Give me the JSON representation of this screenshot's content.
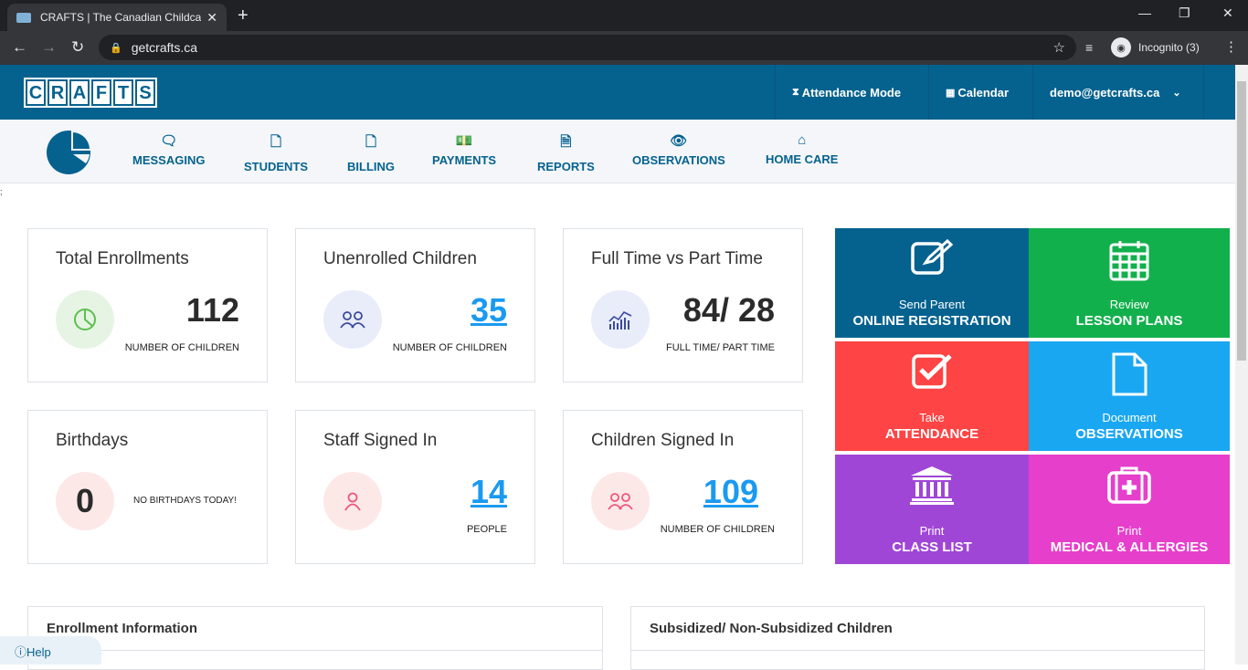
{
  "browser": {
    "tab_title": "CRAFTS | The Canadian Childcare",
    "url": "getcrafts.ca",
    "incognito_label": "Incognito (3)"
  },
  "header": {
    "logo_letters": [
      "C",
      "R",
      "A",
      "F",
      "T",
      "S"
    ],
    "attendance_mode": "Attendance Mode",
    "calendar": "Calendar",
    "user_email": "demo@getcrafts.ca"
  },
  "nav": {
    "items": [
      {
        "label": "MESSAGING",
        "icon": "chat-icon"
      },
      {
        "label": "STUDENTS",
        "icon": "document-icon"
      },
      {
        "label": "BILLING",
        "icon": "document-icon"
      },
      {
        "label": "PAYMENTS",
        "icon": "money-icon"
      },
      {
        "label": "REPORTS",
        "icon": "report-icon"
      },
      {
        "label": "OBSERVATIONS",
        "icon": "eye-icon"
      },
      {
        "label": "HOME CARE",
        "icon": "home-icon"
      }
    ]
  },
  "stray_char": ";",
  "cards": {
    "total_enrollments": {
      "title": "Total Enrollments",
      "value": "112",
      "sub": "NUMBER OF CHILDREN"
    },
    "unenrolled": {
      "title": "Unenrolled Children",
      "value": "35",
      "sub": "NUMBER OF CHILDREN"
    },
    "fulltime": {
      "title": "Full Time vs Part Time",
      "value": "84/ 28",
      "sub": "FULL TIME/ PART TIME"
    },
    "birthdays": {
      "title": "Birthdays",
      "value": "0",
      "sub": "NO BIRTHDAYS TODAY!"
    },
    "staff": {
      "title": "Staff Signed In",
      "value": "14",
      "sub": "PEOPLE"
    },
    "children": {
      "title": "Children Signed In",
      "value": "109",
      "sub": "NUMBER OF CHILDREN"
    }
  },
  "tiles": {
    "registration": {
      "line1": "Send Parent",
      "line2": "ONLINE REGISTRATION",
      "color": "#05628f"
    },
    "lesson": {
      "line1": "Review",
      "line2": "LESSON PLANS",
      "color": "#12b04c"
    },
    "attendance": {
      "line1": "Take",
      "line2": "ATTENDANCE",
      "color": "#fe4444"
    },
    "observations": {
      "line1": "Document",
      "line2": "OBSERVATIONS",
      "color": "#1aa7f2"
    },
    "classlist": {
      "line1": "Print",
      "line2": "CLASS LIST",
      "color": "#a046d6"
    },
    "medical": {
      "line1": "Print",
      "line2": "MEDICAL & ALLERGIES",
      "color": "#e63fcc"
    }
  },
  "panels": {
    "enrollment": "Enrollment Information",
    "subsidized": "Subsidized/ Non-Subsidized Children"
  },
  "help": "Help"
}
